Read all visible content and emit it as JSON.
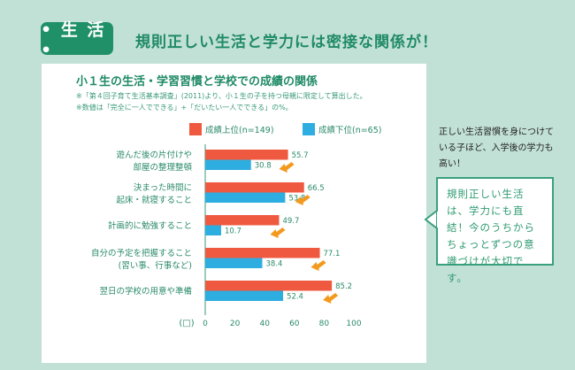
{
  "badge": "• 生 活 •",
  "headline": "規則正しい生活と学力には密接な関係が！",
  "side_text": "正しい生活習慣を身につけている子ほど、入学後の学力も高い！",
  "callout": "規則正しい生活は、学力にも直結！今のうちからちょっとずつの意識づけが大切です。",
  "colors": {
    "upper": "#ee5940",
    "lower": "#2eaee0",
    "arrow": "#f39a1e",
    "accent": "#1f9068"
  },
  "chart_data": {
    "type": "bar",
    "title": "小１生の生活・学習習慣と学校での成績の関係",
    "notes": [
      "※「第４回子育て生活基本調査」(2011)より、小１生の子を持つ母親に限定して算出した。",
      "※数値は「完全に一人でできる」+「だいたい一人でできる」の%。"
    ],
    "unit_label": "(□)",
    "categories": [
      [
        "遊んだ後の片付けや",
        "部屋の整理整頓"
      ],
      [
        "決まった時間に",
        "起床・就寝すること"
      ],
      [
        "計画的に勉強すること"
      ],
      [
        "自分の予定を把握すること",
        "(習い事、行事など)"
      ],
      [
        "翌日の学校の用意や準備"
      ]
    ],
    "series": [
      {
        "name": "成績上位(n=149)",
        "values": [
          55.7,
          66.5,
          49.7,
          77.1,
          85.2
        ]
      },
      {
        "name": "成績下位(n=65)",
        "values": [
          30.8,
          53.8,
          10.7,
          38.4,
          52.4
        ]
      }
    ],
    "xlim": [
      0,
      100
    ],
    "xticks": [
      0,
      20,
      40,
      60,
      80,
      100
    ],
    "orientation": "horizontal",
    "legend": "top"
  }
}
